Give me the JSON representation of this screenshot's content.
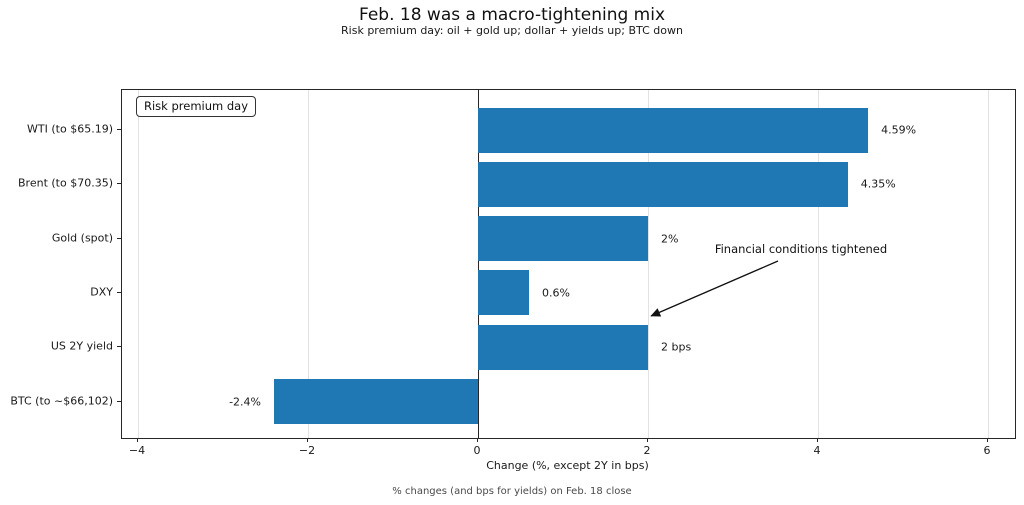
{
  "figure": {
    "title": "Feb. 18 was a macro-tightening mix",
    "subtitle": "Risk premium day: oil + gold up; dollar + yields up; BTC down",
    "caption": "% changes (and bps for yields) on Feb. 18 close",
    "legend_label": "Risk premium day",
    "annotation_text": "Financial conditions tightened"
  },
  "chart_data": {
    "type": "bar",
    "orientation": "horizontal",
    "title": "Feb. 18 was a macro-tightening mix",
    "subtitle": "Risk premium day: oil + gold up; dollar + yields up; BTC down",
    "categories": [
      "WTI (to $65.19)",
      "Brent (to $70.35)",
      "Gold (spot)",
      "DXY",
      "US 2Y yield",
      "BTC (to ~$66,102)"
    ],
    "values": [
      4.59,
      4.35,
      2,
      0.6,
      2,
      -2.4
    ],
    "value_labels": [
      "4.59%",
      "4.35%",
      "2%",
      "0.6%",
      "2 bps",
      "-2.4%"
    ],
    "xlabel": "Change (%, except 2Y in bps)",
    "ylabel": "",
    "x_ticks": [
      -4,
      -2,
      0,
      2,
      4,
      6
    ],
    "x_tick_labels": [
      "−4",
      "−2",
      "0",
      "2",
      "4",
      "6"
    ],
    "xlim": [
      -4.19,
      6.32
    ],
    "grid": "vertical-only",
    "legend": "Risk premium day (top-left box inside plot)",
    "annotation": "Financial conditions tightened (arrow pointing to US 2Y yield bar end)",
    "bar_color": "#1f77b4",
    "units_note": "% changes (and bps for yields) on Feb. 18 close"
  },
  "colors": {
    "bar": "#1f77b4",
    "spine": "#262626",
    "grid": "#e2e2e2",
    "text": "#1a1a1a",
    "caption": "#4a4a4a",
    "background": "#ffffff"
  }
}
